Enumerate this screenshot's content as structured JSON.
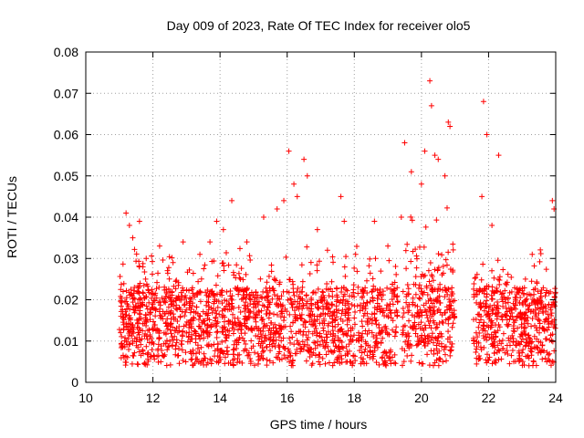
{
  "chart_data": {
    "type": "scatter",
    "title": "Day 009 of 2023, Rate Of TEC Index for receiver olo5",
    "xlabel": "GPS time / hours",
    "ylabel": "ROTI / TECUs",
    "xlim": [
      10,
      24
    ],
    "ylim": [
      0,
      0.08
    ],
    "xticks": [
      "10",
      "12",
      "14",
      "16",
      "18",
      "20",
      "22",
      "24"
    ],
    "yticks": [
      "0",
      "0.01",
      "0.02",
      "0.03",
      "0.04",
      "0.05",
      "0.06",
      "0.07",
      "0.08"
    ],
    "grid": true,
    "marker": "plus",
    "color": "#ff0000",
    "series": [
      {
        "points": [
          [
            11.2,
            0.041
          ],
          [
            11.3,
            0.038
          ],
          [
            11.4,
            0.035
          ],
          [
            11.6,
            0.039
          ],
          [
            11.8,
            0.03
          ],
          [
            12.2,
            0.033
          ],
          [
            12.6,
            0.029
          ],
          [
            12.9,
            0.034
          ],
          [
            13.4,
            0.031
          ],
          [
            13.7,
            0.034
          ],
          [
            13.9,
            0.039
          ],
          [
            14.1,
            0.037
          ],
          [
            14.35,
            0.044
          ],
          [
            14.8,
            0.034
          ],
          [
            15.3,
            0.04
          ],
          [
            15.7,
            0.042
          ],
          [
            15.9,
            0.044
          ],
          [
            16.05,
            0.056
          ],
          [
            16.2,
            0.048
          ],
          [
            16.3,
            0.045
          ],
          [
            16.5,
            0.054
          ],
          [
            16.6,
            0.05
          ],
          [
            16.9,
            0.037
          ],
          [
            17.2,
            0.032
          ],
          [
            17.6,
            0.045
          ],
          [
            17.7,
            0.039
          ],
          [
            18.6,
            0.039
          ],
          [
            19.0,
            0.033
          ],
          [
            19.4,
            0.04
          ],
          [
            19.5,
            0.058
          ],
          [
            19.7,
            0.051
          ],
          [
            20.0,
            0.048
          ],
          [
            20.1,
            0.056
          ],
          [
            20.25,
            0.073
          ],
          [
            20.3,
            0.067
          ],
          [
            20.4,
            0.055
          ],
          [
            20.5,
            0.054
          ],
          [
            20.7,
            0.05
          ],
          [
            20.8,
            0.063
          ],
          [
            20.85,
            0.062
          ],
          [
            21.8,
            0.045
          ],
          [
            21.85,
            0.068
          ],
          [
            21.95,
            0.06
          ],
          [
            22.1,
            0.038
          ],
          [
            22.3,
            0.055
          ],
          [
            23.3,
            0.031
          ],
          [
            23.9,
            0.044
          ],
          [
            23.95,
            0.042
          ]
        ]
      }
    ]
  }
}
